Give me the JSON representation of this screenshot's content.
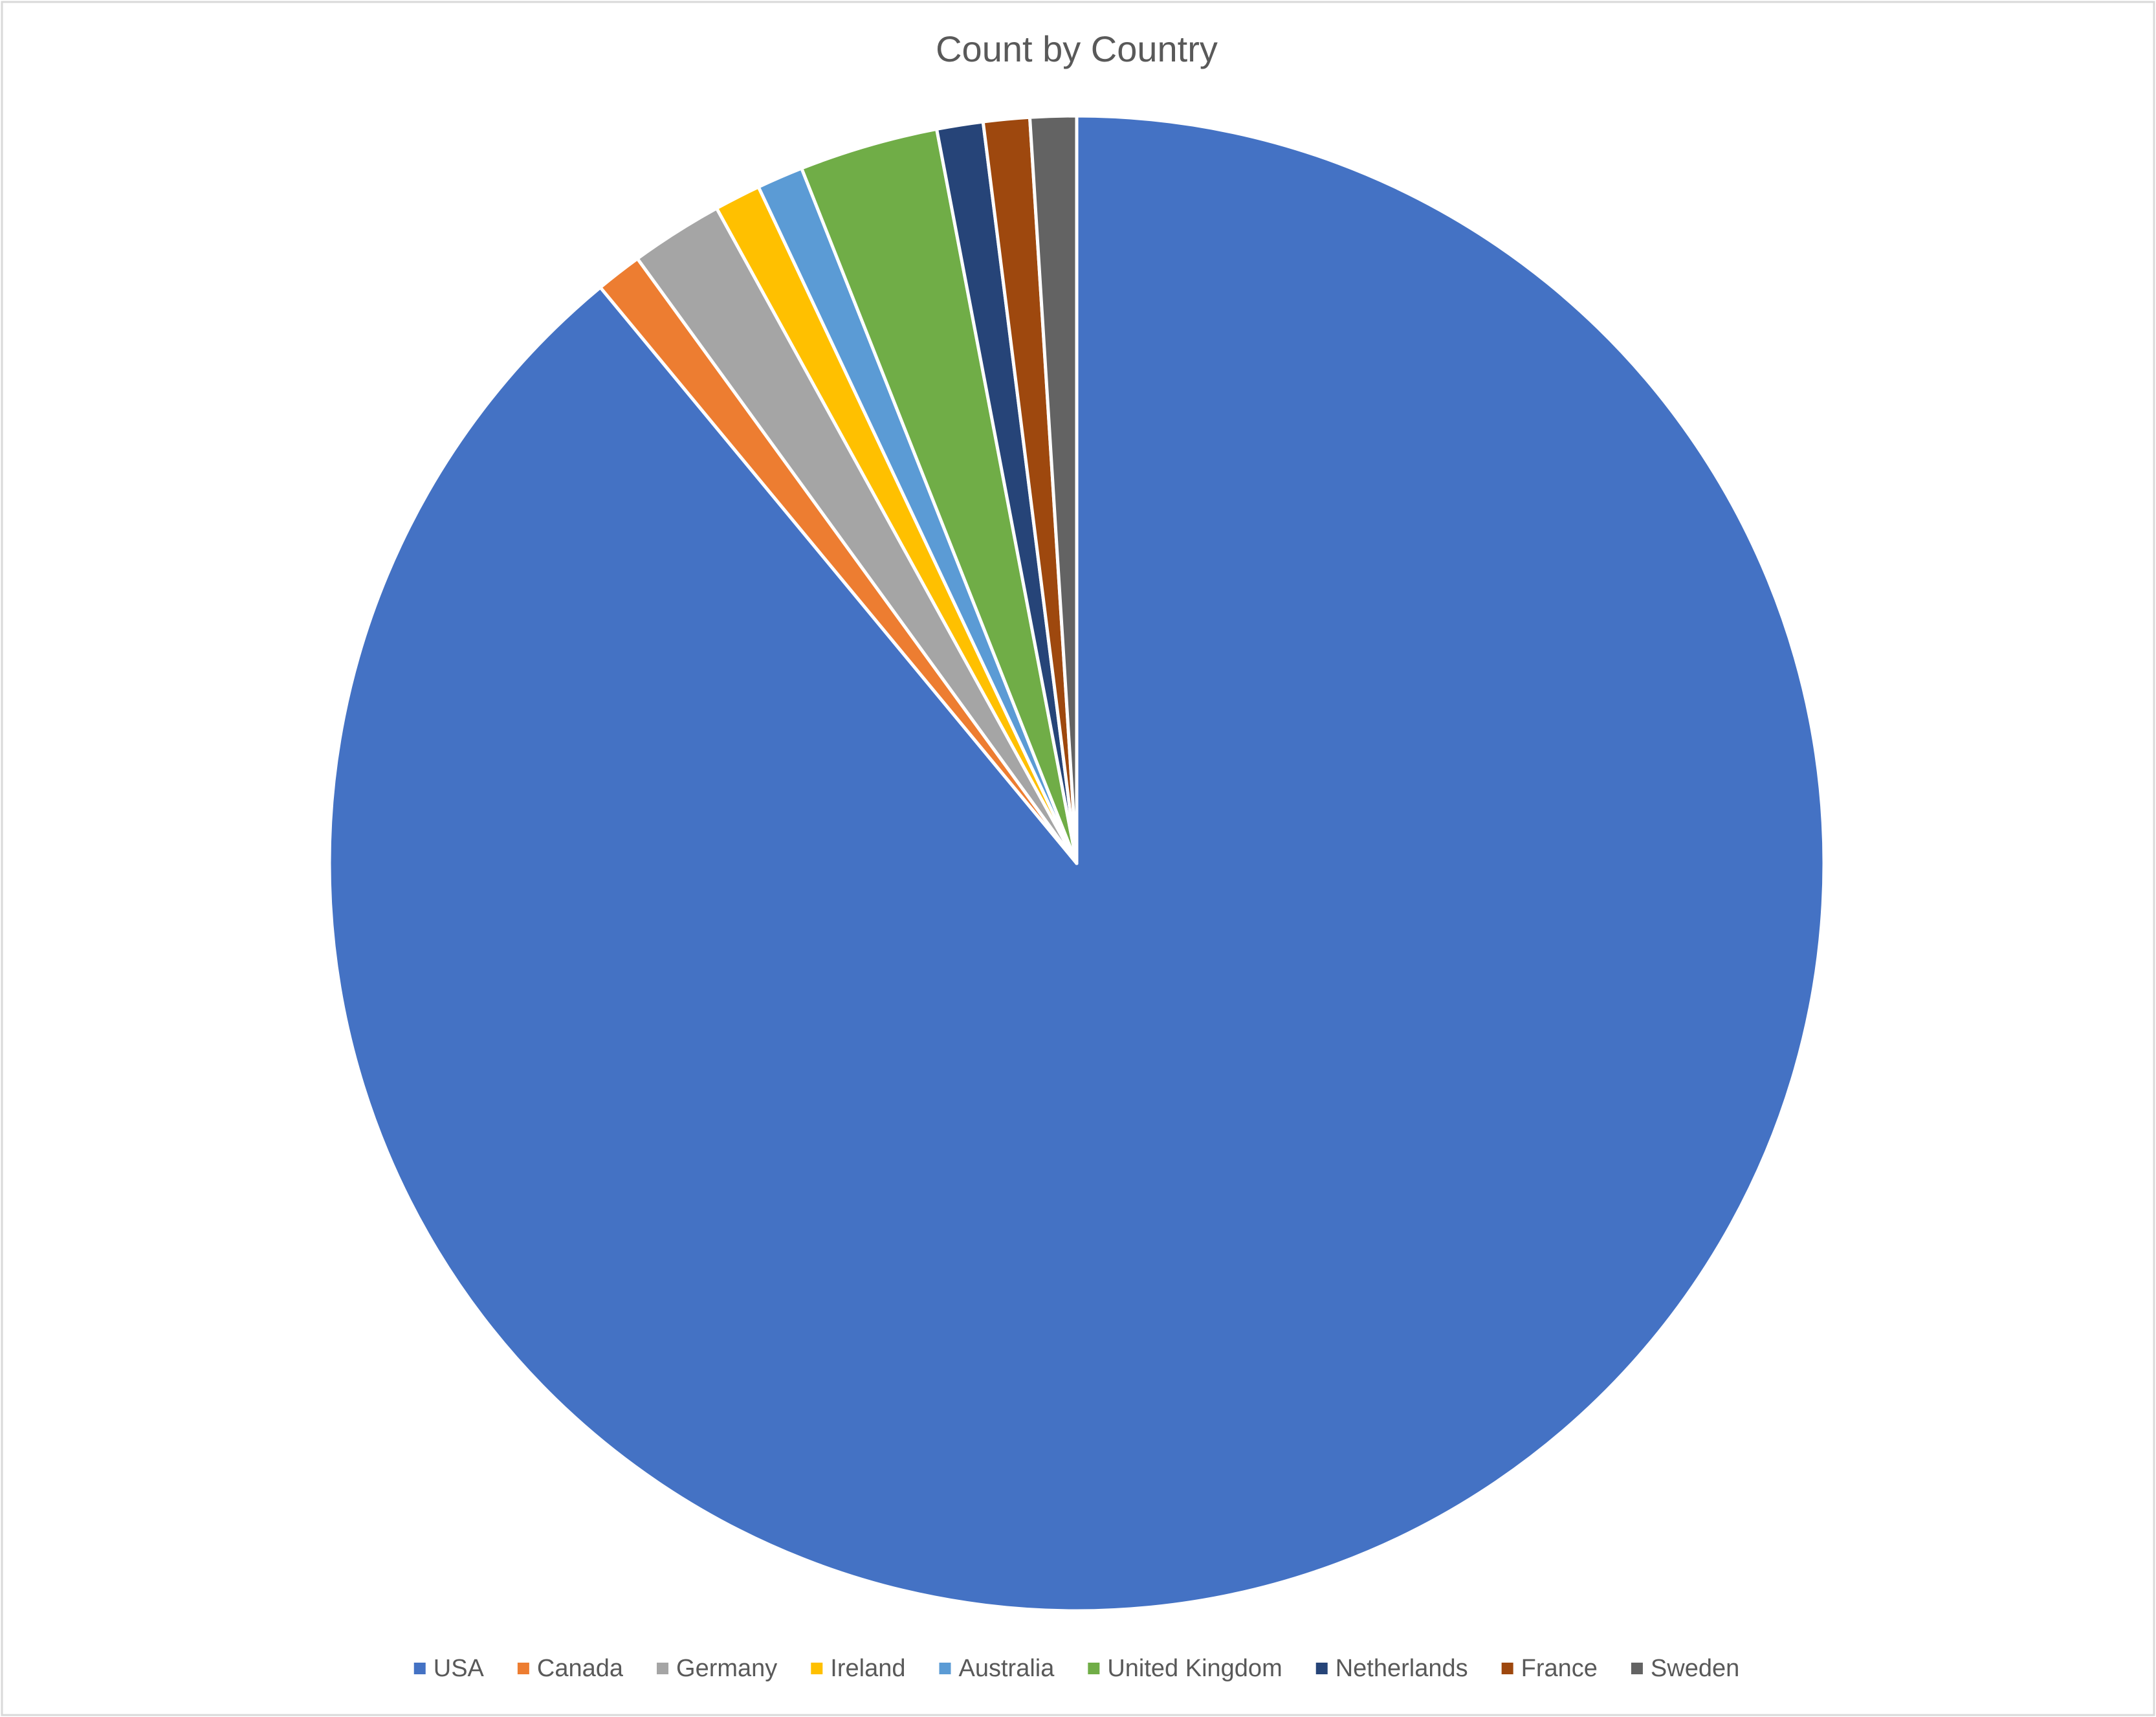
{
  "chart_data": {
    "type": "pie",
    "title": "Count by Country",
    "categories": [
      "USA",
      "Canada",
      "Germany",
      "Ireland",
      "Australia",
      "United Kingdom",
      "Netherlands",
      "France",
      "Sweden"
    ],
    "values": [
      89,
      1,
      2,
      1,
      1,
      3,
      1,
      1,
      1
    ],
    "colors": [
      "#4472c4",
      "#ed7d31",
      "#a5a5a5",
      "#ffc000",
      "#5b9bd5",
      "#70ad47",
      "#264478",
      "#9e480e",
      "#636363"
    ],
    "legend": "bottom"
  }
}
